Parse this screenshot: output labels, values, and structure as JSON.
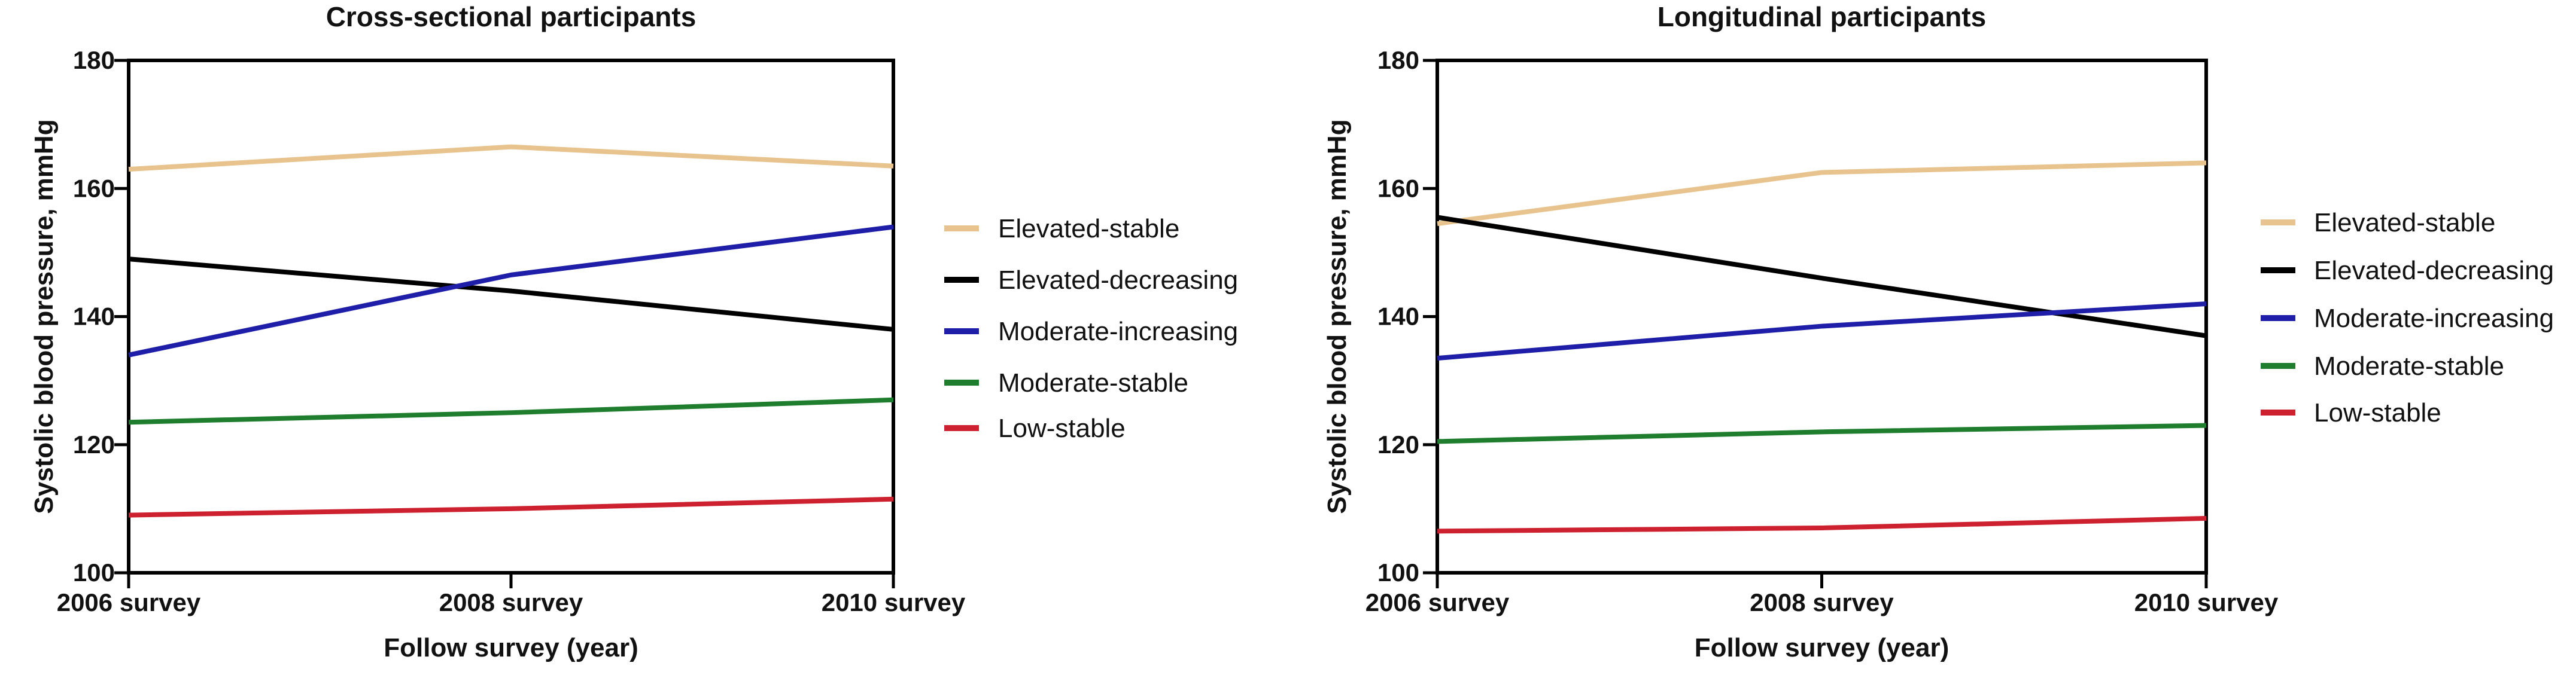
{
  "figure": {
    "background": "#ffffff",
    "panel_titles": [
      "Cross-sectional participants",
      "Longitudinal participants"
    ]
  },
  "chart_data": [
    {
      "type": "line",
      "title": "Cross-sectional participants",
      "xlabel": "Follow survey (year)",
      "ylabel": "Systolic blood pressure, mmHg",
      "categories": [
        "2006 survey",
        "2008 survey",
        "2010 survey"
      ],
      "ylim": [
        100,
        180
      ],
      "yticks": [
        100,
        120,
        140,
        160,
        180
      ],
      "grid": false,
      "legend_position": "right",
      "series": [
        {
          "name": "Elevated-stable",
          "color": "#e8c38e",
          "values": [
            163,
            166.5,
            163.5
          ]
        },
        {
          "name": "Elevated-decreasing",
          "color": "#000000",
          "values": [
            149,
            144,
            138
          ]
        },
        {
          "name": "Moderate-increasing",
          "color": "#1e1ea8",
          "values": [
            134,
            146.5,
            154
          ]
        },
        {
          "name": "Moderate-stable",
          "color": "#1e7e2e",
          "values": [
            123.5,
            125,
            127
          ]
        },
        {
          "name": "Low-stable",
          "color": "#ce2130",
          "values": [
            109,
            110,
            111.5
          ]
        }
      ]
    },
    {
      "type": "line",
      "title": "Longitudinal participants",
      "xlabel": "Follow survey (year)",
      "ylabel": "Systolic blood pressure, mmHg",
      "categories": [
        "2006 survey",
        "2008 survey",
        "2010 survey"
      ],
      "ylim": [
        100,
        180
      ],
      "yticks": [
        100,
        120,
        140,
        160,
        180
      ],
      "grid": false,
      "legend_position": "right",
      "series": [
        {
          "name": "Elevated-stable",
          "color": "#e8c38e",
          "values": [
            154.5,
            162.5,
            164
          ]
        },
        {
          "name": "Elevated-decreasing",
          "color": "#000000",
          "values": [
            155.5,
            146,
            137
          ]
        },
        {
          "name": "Moderate-increasing",
          "color": "#1e1ea8",
          "values": [
            133.5,
            138.5,
            142
          ]
        },
        {
          "name": "Moderate-stable",
          "color": "#1e7e2e",
          "values": [
            120.5,
            122,
            123
          ]
        },
        {
          "name": "Low-stable",
          "color": "#ce2130",
          "values": [
            106.5,
            107,
            108.5
          ]
        }
      ]
    }
  ]
}
